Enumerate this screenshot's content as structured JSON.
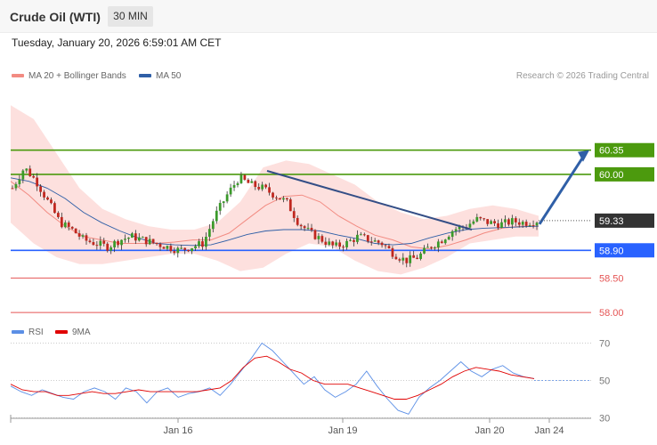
{
  "header": {
    "title": "Crude Oil (WTI)",
    "interval": "30 MIN",
    "timestamp": "Tuesday, January 20, 2026 6:59:01 AM CET",
    "copyright": "Research © 2026 Trading Central"
  },
  "legend": {
    "price": [
      {
        "label": "MA 20 + Bollinger Bands",
        "color": "#f28b82"
      },
      {
        "label": "MA 50",
        "color": "#2f5fa7"
      }
    ],
    "rsi": [
      {
        "label": "RSI",
        "color": "#5b8fe6"
      },
      {
        "label": "9MA",
        "color": "#e00000"
      }
    ]
  },
  "chart_data": [
    {
      "type": "candlestick",
      "series_names": [
        "MA 20 + Bollinger Bands",
        "MA 50"
      ],
      "ylim": [
        57.95,
        61.3
      ],
      "current_price": 59.33,
      "levels": [
        {
          "value": 60.35,
          "label": "60.35",
          "kind": "resistance",
          "color": "#4c9a0e"
        },
        {
          "value": 60.0,
          "label": "60.00",
          "kind": "resistance",
          "color": "#4c9a0e"
        },
        {
          "value": 58.9,
          "label": "58.90",
          "kind": "support",
          "color": "#2962ff"
        },
        {
          "value": 58.5,
          "label": "58.50",
          "kind": "support",
          "color": "#e55555"
        },
        {
          "value": 58.0,
          "label": "58.00",
          "kind": "support",
          "color": "#e55555"
        }
      ],
      "x_ticks": [
        "Jan 16",
        "Jan 19",
        "Jan 20",
        "Jan 24"
      ],
      "close_path": [
        59.8,
        60.1,
        59.9,
        59.6,
        59.3,
        59.2,
        59.05,
        59.0,
        58.95,
        59.05,
        59.1,
        59.05,
        59.0,
        58.95,
        58.9,
        58.95,
        59.0,
        59.4,
        59.7,
        59.95,
        59.85,
        59.8,
        59.7,
        59.6,
        59.3,
        59.15,
        59.05,
        58.95,
        59.0,
        59.1,
        59.05,
        59.0,
        58.85,
        58.75,
        58.8,
        58.95,
        59.05,
        59.2,
        59.25,
        59.35,
        59.3,
        59.28,
        59.32,
        59.3,
        59.33
      ],
      "ma20_path": [
        59.9,
        59.7,
        59.45,
        59.25,
        59.1,
        59.05,
        59.0,
        59.0,
        59.0,
        59.02,
        59.05,
        59.05,
        59.15,
        59.35,
        59.55,
        59.68,
        59.7,
        59.6,
        59.4,
        59.25,
        59.12,
        59.05,
        58.95,
        58.92,
        58.97,
        59.05,
        59.15,
        59.22,
        59.25,
        59.25
      ],
      "ma50_path": [
        59.95,
        59.9,
        59.8,
        59.65,
        59.45,
        59.3,
        59.18,
        59.08,
        59.0,
        58.98,
        58.97,
        58.98,
        59.05,
        59.13,
        59.18,
        59.2,
        59.2,
        59.18,
        59.12,
        59.07,
        59.0,
        58.98,
        59.0,
        59.08,
        59.15,
        59.2,
        59.22,
        59.23,
        59.24,
        59.25
      ],
      "bb_upper_path": [
        61.0,
        60.8,
        60.3,
        59.8,
        59.5,
        59.35,
        59.25,
        59.2,
        59.2,
        59.3,
        59.6,
        60.1,
        60.2,
        60.15,
        60.0,
        59.85,
        59.6,
        59.45,
        59.35,
        59.4,
        59.5,
        59.55,
        59.5,
        59.4
      ],
      "bb_lower_path": [
        59.3,
        59.0,
        58.8,
        58.7,
        58.7,
        58.75,
        58.8,
        58.85,
        58.85,
        58.75,
        58.6,
        58.65,
        58.85,
        59.0,
        58.95,
        58.75,
        58.6,
        58.55,
        58.65,
        58.8,
        59.0,
        59.05,
        59.1,
        59.1
      ],
      "trendlines": [
        {
          "from": 60.05,
          "to": 59.2,
          "color": "#344e86"
        },
        {
          "from": 59.28,
          "to": 60.35,
          "color": "#2f5fa7",
          "arrow": true
        }
      ]
    },
    {
      "type": "line",
      "series_names": [
        "RSI",
        "9MA"
      ],
      "ylim": [
        25,
        75
      ],
      "y_ticks": [
        70,
        50,
        30
      ],
      "rsi_path": [
        47,
        44,
        42,
        45,
        43,
        41,
        40,
        44,
        46,
        44,
        40,
        46,
        44,
        38,
        44,
        46,
        41,
        43,
        44,
        46,
        42,
        48,
        55,
        62,
        70,
        66,
        60,
        54,
        48,
        52,
        45,
        41,
        44,
        48,
        55,
        47,
        40,
        34,
        32,
        41,
        46,
        50,
        55,
        60,
        55,
        52,
        56,
        58,
        54,
        52,
        51
      ],
      "ma9_path": [
        48,
        45,
        44,
        44,
        42,
        42,
        43,
        44,
        43,
        43,
        44,
        45,
        44,
        44,
        44,
        44,
        44,
        45,
        46,
        50,
        57,
        62,
        63,
        60,
        56,
        54,
        50,
        48,
        48,
        48,
        46,
        44,
        42,
        40,
        40,
        42,
        45,
        48,
        52,
        55,
        57,
        56,
        55,
        53,
        52,
        51
      ]
    }
  ]
}
